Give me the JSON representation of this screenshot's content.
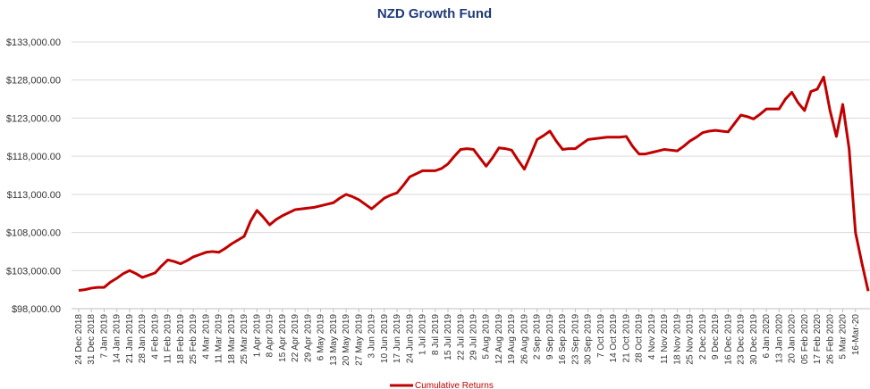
{
  "chart_data": {
    "type": "line",
    "title": "NZD Growth Fund",
    "categories": [
      "24 Dec 2018",
      null,
      "31 Dec 2018",
      null,
      "7 Jan 2019",
      null,
      "14 Jan 2019",
      null,
      "21 Jan 2019",
      null,
      "28 Jan 2019",
      null,
      "4 Feb 2019",
      null,
      "11 Feb 2019",
      null,
      "18 Feb 2019",
      null,
      "25 Feb 2019",
      null,
      "4 Mar 2019",
      null,
      "11 Mar 2019",
      null,
      "18 Mar 2019",
      null,
      "25 Mar 2019",
      null,
      "1 Apr 2019",
      null,
      "8 Apr 2019",
      null,
      "15 Apr 2019",
      null,
      "22 Apr 2019",
      null,
      "29 Apr 2019",
      null,
      "6 May 2019",
      null,
      "13 May 2019",
      null,
      "20 May 2019",
      null,
      "27 May 2019",
      null,
      "3 Jun 2019",
      null,
      "10 Jun 2019",
      null,
      "17 Jun 2019",
      null,
      "24 Jun 2019",
      null,
      "1 Jul 2019",
      null,
      "8 Jul 2019",
      null,
      "15 Jul 2019",
      null,
      "22 Jul 2019",
      null,
      "29 Jul 2019",
      null,
      "5 Aug 2019",
      null,
      "12 Aug 2019",
      null,
      "19 Aug 2019",
      null,
      "26 Aug 2019",
      null,
      "2 Sep 2019",
      null,
      "9 Sep 2019",
      null,
      "16 Sep 2019",
      null,
      "23 Sep 2019",
      null,
      "30 Sep 2019",
      null,
      "7 Oct 2019",
      null,
      "14 Oct 2019",
      null,
      "21 Oct 2019",
      null,
      "28 Oct 2019",
      null,
      "4 Nov 2019",
      null,
      "11 Nov 2019",
      null,
      "18 Nov 2019",
      null,
      "25 Nov 2019",
      null,
      "2 Dec 2019",
      null,
      "9 Dec 2019",
      null,
      "16 Dec 2019",
      null,
      "23 Dec 2019",
      null,
      "30 Dec 2019",
      null,
      "6 Jan 2020",
      null,
      "13 Jan 2020",
      null,
      "20 Jan 2020",
      null,
      "05 Feb 2020",
      null,
      "17 Feb 2020",
      null,
      "26 Feb 2020",
      null,
      "5 Mar 2020",
      null,
      "16-Mar-20",
      null,
      null
    ],
    "series": [
      {
        "name": "Cumulative Returns",
        "color": "#c00000",
        "values": [
          100400,
          100500,
          100700,
          100800,
          100800,
          101500,
          102000,
          102600,
          103000,
          102600,
          102100,
          102400,
          102700,
          103600,
          104400,
          104200,
          103900,
          104300,
          104800,
          105100,
          105400,
          105500,
          105400,
          105900,
          106500,
          107000,
          107500,
          109500,
          110900,
          110000,
          109000,
          109700,
          110200,
          110600,
          111000,
          111100,
          111200,
          111300,
          111500,
          111700,
          111900,
          112500,
          113000,
          112700,
          112300,
          111700,
          111100,
          111800,
          112500,
          112900,
          113200,
          114200,
          115300,
          115700,
          116100,
          116100,
          116100,
          116400,
          117000,
          118000,
          118900,
          119000,
          118900,
          117800,
          116700,
          117800,
          119100,
          119000,
          118800,
          117500,
          116300,
          118200,
          120200,
          120700,
          121300,
          120000,
          118900,
          119000,
          119000,
          119600,
          120200,
          120300,
          120400,
          120500,
          120500,
          120500,
          120600,
          119300,
          118300,
          118300,
          118500,
          118700,
          118900,
          118800,
          118700,
          119300,
          120000,
          120500,
          121100,
          121300,
          121400,
          121300,
          121200,
          122300,
          123400,
          123200,
          122900,
          123500,
          124200,
          124200,
          124200,
          125500,
          126400,
          125000,
          124000,
          126500,
          126800,
          128400,
          124000,
          120600,
          124800,
          119000,
          108000,
          104000,
          100300
        ]
      }
    ],
    "ylim": [
      98000,
      133000
    ],
    "yticks": [
      {
        "value": 98000,
        "label": "$98,000.00"
      },
      {
        "value": 103000,
        "label": "$103,000.00"
      },
      {
        "value": 108000,
        "label": "$108,000.00"
      },
      {
        "value": 113000,
        "label": "$113,000.00"
      },
      {
        "value": 118000,
        "label": "$118,000.00"
      },
      {
        "value": 123000,
        "label": "$123,000.00"
      },
      {
        "value": 128000,
        "label": "$128,000.00"
      },
      {
        "value": 133000,
        "label": "$133,000.00"
      }
    ],
    "grid": true,
    "legend": "bottom"
  }
}
